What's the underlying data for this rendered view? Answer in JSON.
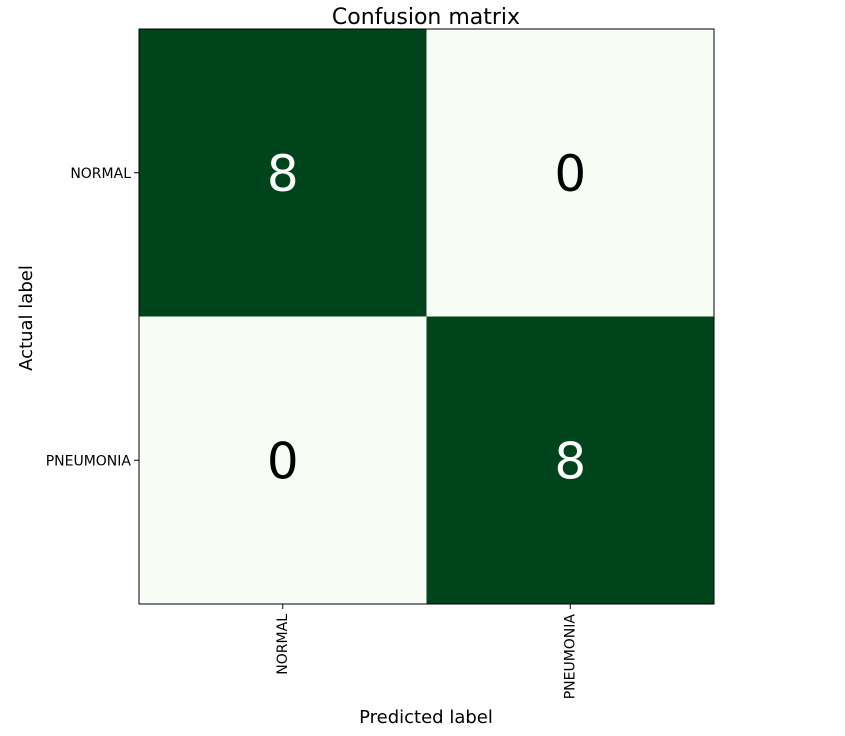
{
  "chart_data": {
    "type": "heatmap",
    "title": "Confusion matrix",
    "xlabel": "Predicted label",
    "ylabel": "Actual label",
    "x_categories": [
      "NORMAL",
      "PNEUMONIA"
    ],
    "y_categories": [
      "NORMAL",
      "PNEUMONIA"
    ],
    "values": [
      [
        8,
        0
      ],
      [
        0,
        8
      ]
    ],
    "colormap": "Greens",
    "color_low": "#f7fcf5",
    "color_high": "#00441b",
    "text_color_dark_cell": "#ffffff",
    "text_color_light_cell": "#000000",
    "grid": false
  }
}
